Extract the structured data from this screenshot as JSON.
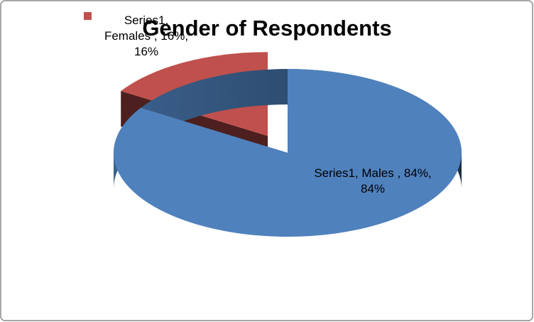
{
  "chart_data": {
    "type": "pie",
    "title": "Gender of Respondents",
    "values": [
      84,
      16
    ],
    "value_labels": [
      "Series1, Males , 84%, 84%",
      "Series1, Females , 16%, 16%"
    ],
    "colors": [
      "#4f81bd",
      "#c0504d"
    ]
  }
}
